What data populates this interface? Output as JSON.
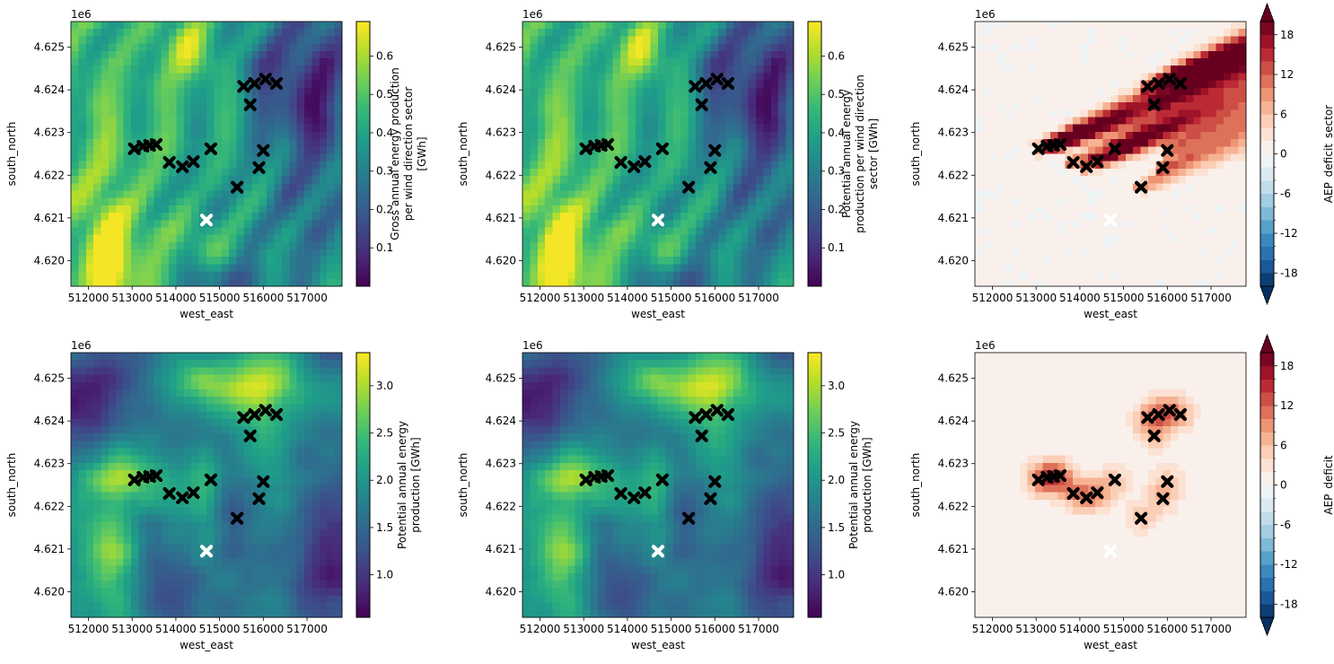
{
  "figure": {
    "axis_xlabel": "west_east",
    "axis_ylabel": "south_north",
    "y_offset_label": "1e6",
    "x_tick_labels": [
      "512000",
      "513000",
      "514000",
      "515000",
      "516000",
      "517000"
    ],
    "y_tick_labels": [
      "4.620",
      "4.621",
      "4.622",
      "4.623",
      "4.624",
      "4.625"
    ]
  },
  "colors": {
    "turbine_marker": "#000000",
    "reference_marker": "#ffffff"
  },
  "chart_data": [
    {
      "type": "heatmap",
      "colormap": "viridis",
      "field": "direction",
      "colorbar_label": [
        "Gross annual energy production",
        "per wind direction sector",
        "[GWh]"
      ],
      "colorbar_ticks": [
        "0.1",
        "0.2",
        "0.3",
        "0.4",
        "0.5",
        "0.6"
      ],
      "colorbar_tick_values": [
        0.1,
        0.2,
        0.3,
        0.4,
        0.5,
        0.6
      ],
      "vmin": 0.0,
      "vmax": 0.69,
      "xlim": [
        511600,
        517800
      ],
      "ylim": [
        4619400,
        4625600
      ],
      "xlabel": "west_east",
      "ylabel": "south_north",
      "grid": false
    },
    {
      "type": "heatmap",
      "colormap": "viridis",
      "field": "direction",
      "colorbar_label": [
        "Potential annual energy",
        "production per wind direction",
        "sector [GWh]"
      ],
      "colorbar_ticks": [
        "0.1",
        "0.2",
        "0.3",
        "0.4",
        "0.5",
        "0.6"
      ],
      "colorbar_tick_values": [
        0.1,
        0.2,
        0.3,
        0.4,
        0.5,
        0.6
      ],
      "vmin": 0.0,
      "vmax": 0.69,
      "xlim": [
        511600,
        517800
      ],
      "ylim": [
        4619400,
        4625600
      ],
      "xlabel": "west_east",
      "ylabel": "south_north",
      "grid": false
    },
    {
      "type": "heatmap",
      "colormap": "RdBu_r",
      "field": "deficit_sector",
      "colorbar_label": [
        "AEP_deficit_sector"
      ],
      "colorbar_ticks": [
        "-18",
        "-12",
        "-6",
        "0",
        "6",
        "12",
        "18"
      ],
      "colorbar_tick_values": [
        -18,
        -12,
        -6,
        0,
        6,
        12,
        18
      ],
      "vmin": -20,
      "vmax": 20,
      "levels_step": 2,
      "extend": "both",
      "xlim": [
        511600,
        517800
      ],
      "ylim": [
        4619400,
        4625600
      ],
      "xlabel": "west_east",
      "ylabel": "south_north",
      "grid": false
    },
    {
      "type": "heatmap",
      "colormap": "viridis",
      "field": "total",
      "colorbar_label": [
        "Potential annual energy",
        "production [GWh]"
      ],
      "colorbar_ticks": [
        "1.0",
        "1.5",
        "2.0",
        "2.5",
        "3.0"
      ],
      "colorbar_tick_values": [
        1.0,
        1.5,
        2.0,
        2.5,
        3.0
      ],
      "vmin": 0.55,
      "vmax": 3.35,
      "xlim": [
        511600,
        517800
      ],
      "ylim": [
        4619400,
        4625600
      ],
      "xlabel": "west_east",
      "ylabel": "south_north",
      "grid": false
    },
    {
      "type": "heatmap",
      "colormap": "viridis",
      "field": "total",
      "colorbar_label": [
        "Potential annual energy",
        "production [GWh]"
      ],
      "colorbar_ticks": [
        "1.0",
        "1.5",
        "2.0",
        "2.5",
        "3.0"
      ],
      "colorbar_tick_values": [
        1.0,
        1.5,
        2.0,
        2.5,
        3.0
      ],
      "vmin": 0.55,
      "vmax": 3.35,
      "xlim": [
        511600,
        517800
      ],
      "ylim": [
        4619400,
        4625600
      ],
      "xlabel": "west_east",
      "ylabel": "south_north",
      "grid": false
    },
    {
      "type": "heatmap",
      "colormap": "RdBu_r",
      "field": "deficit_total",
      "colorbar_label": [
        "AEP_deficit"
      ],
      "colorbar_ticks": [
        "-18",
        "-12",
        "-6",
        "0",
        "6",
        "12",
        "18"
      ],
      "colorbar_tick_values": [
        -18,
        -12,
        -6,
        0,
        6,
        12,
        18
      ],
      "vmin": -20,
      "vmax": 20,
      "levels_step": 2,
      "extend": "both",
      "xlim": [
        511600,
        517800
      ],
      "ylim": [
        4619400,
        4625600
      ],
      "xlabel": "west_east",
      "ylabel": "south_north",
      "grid": false
    }
  ],
  "turbines": [
    [
      513050,
      4622620
    ],
    [
      513250,
      4622680
    ],
    [
      513400,
      4622700
    ],
    [
      513550,
      4622720
    ],
    [
      513850,
      4622300
    ],
    [
      514150,
      4622200
    ],
    [
      514400,
      4622320
    ],
    [
      514800,
      4622620
    ],
    [
      515400,
      4621720
    ],
    [
      515550,
      4624080
    ],
    [
      515800,
      4624150
    ],
    [
      516050,
      4624250
    ],
    [
      516300,
      4624150
    ],
    [
      515700,
      4623650
    ],
    [
      516000,
      4622580
    ],
    [
      515900,
      4622180
    ]
  ],
  "reference_site": [
    514700,
    4620950
  ]
}
